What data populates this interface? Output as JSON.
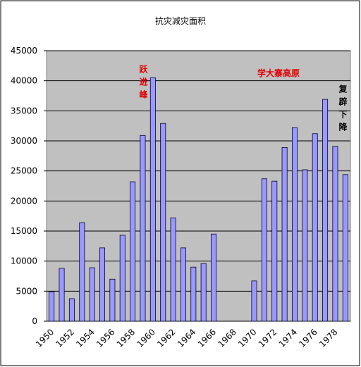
{
  "chart_data": {
    "type": "bar",
    "title": "抗灾减灾面积",
    "categories": [
      "1950",
      null,
      "1952",
      null,
      "1954",
      null,
      "1956",
      null,
      "1958",
      null,
      "1960",
      null,
      "1962",
      null,
      "1964",
      null,
      "1966",
      null,
      "1968",
      null,
      "1970",
      null,
      "1972",
      null,
      "1974",
      null,
      "1976",
      null,
      "1978",
      null
    ],
    "values": [
      4900,
      8800,
      3750,
      16400,
      8900,
      12200,
      7000,
      14300,
      23200,
      30900,
      40500,
      32900,
      17200,
      12200,
      9000,
      9600,
      14500,
      null,
      null,
      null,
      6700,
      23700,
      23300,
      28900,
      32200,
      25200,
      31200,
      36900,
      29100,
      24400
    ],
    "color": "#9999ff",
    "ylim": [
      0,
      45000
    ],
    "yticks": [
      0,
      5000,
      10000,
      15000,
      20000,
      25000,
      30000,
      35000,
      40000,
      45000
    ],
    "grid": true,
    "annotations": [
      {
        "text": "跃进峰",
        "color": "#e00000",
        "orientation": "vertical"
      },
      {
        "text": "学大寨高原",
        "color": "#e00000",
        "orientation": "horizontal"
      },
      {
        "text": "复辟下降",
        "color": "#000000",
        "orientation": "vertical"
      }
    ]
  }
}
